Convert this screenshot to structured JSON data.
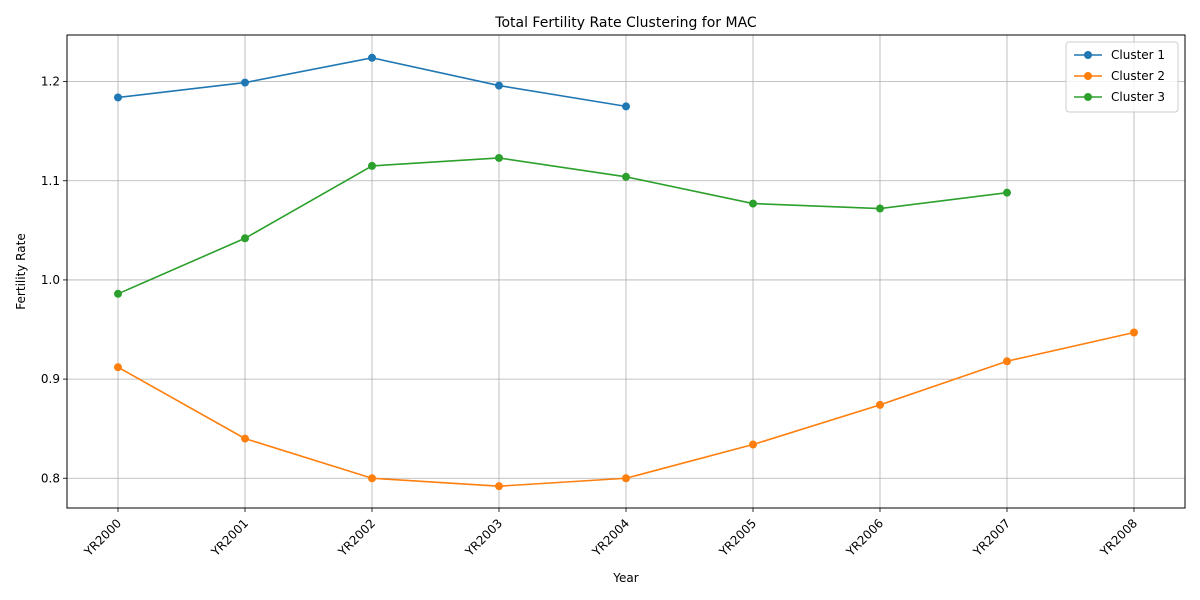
{
  "chart_data": {
    "type": "line",
    "title": "Total Fertility Rate Clustering for MAC",
    "xlabel": "Year",
    "ylabel": "Fertility Rate",
    "categories": [
      "YR2000",
      "YR2001",
      "YR2002",
      "YR2003",
      "YR2004",
      "YR2005",
      "YR2006",
      "YR2007",
      "YR2008"
    ],
    "ylim": [
      0.77,
      1.247
    ],
    "yticks": [
      0.8,
      0.9,
      1.0,
      1.1,
      1.2
    ],
    "ytick_labels": [
      "0.8",
      "0.9",
      "1.0",
      "1.1",
      "1.2"
    ],
    "grid": true,
    "legend_position": "top-right",
    "series": [
      {
        "name": "Cluster 1",
        "color": "#1f77b4",
        "values": [
          1.184,
          1.199,
          1.224,
          1.196,
          1.175,
          null,
          null,
          null,
          null
        ]
      },
      {
        "name": "Cluster 2",
        "color": "#ff7f0e",
        "values": [
          0.912,
          0.84,
          0.8,
          0.792,
          0.8,
          0.834,
          0.874,
          0.918,
          0.947
        ]
      },
      {
        "name": "Cluster 3",
        "color": "#2ca02c",
        "values": [
          0.986,
          1.042,
          1.115,
          1.123,
          1.104,
          1.077,
          1.072,
          1.088,
          null
        ]
      }
    ]
  }
}
